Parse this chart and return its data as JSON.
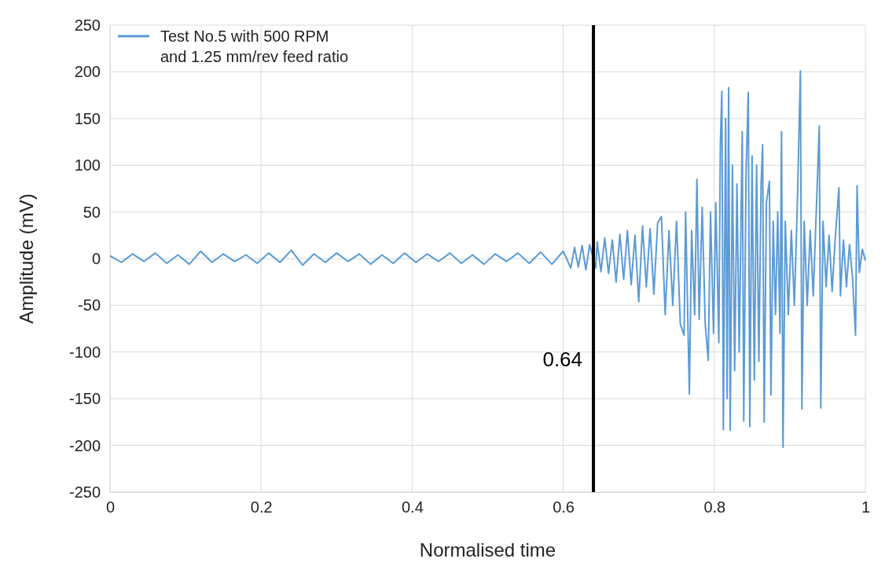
{
  "chart_data": {
    "type": "line",
    "xlabel": "Normalised time",
    "ylabel": "Amplitude (mV)",
    "xlim": [
      0,
      1
    ],
    "xticks": [
      0,
      0.2,
      0.4,
      0.6,
      0.8,
      1
    ],
    "ylim": [
      -250,
      250
    ],
    "yticks": [
      -250,
      -200,
      -150,
      -100,
      -50,
      0,
      50,
      100,
      150,
      200,
      250
    ],
    "grid": true,
    "legend": "top left",
    "line_style": "solid",
    "marker": "none",
    "ref_lines": [
      {
        "axis": "x",
        "value": 0.64,
        "label": "0.64",
        "color": "#000000"
      }
    ],
    "series": [
      {
        "name": "Test No.5 with 500 RPM and 1.25 mm/rev feed ratio",
        "color": "#5b9bd5",
        "x": [
          0,
          0.015,
          0.03,
          0.045,
          0.06,
          0.075,
          0.09,
          0.105,
          0.12,
          0.135,
          0.15,
          0.165,
          0.18,
          0.195,
          0.21,
          0.225,
          0.24,
          0.255,
          0.27,
          0.285,
          0.3,
          0.315,
          0.33,
          0.345,
          0.36,
          0.375,
          0.39,
          0.405,
          0.42,
          0.435,
          0.45,
          0.465,
          0.48,
          0.495,
          0.51,
          0.525,
          0.54,
          0.555,
          0.57,
          0.585,
          0.6,
          0.61,
          0.615,
          0.62,
          0.625,
          0.63,
          0.635,
          0.643,
          0.645,
          0.65,
          0.655,
          0.66,
          0.665,
          0.67,
          0.675,
          0.68,
          0.685,
          0.69,
          0.695,
          0.7,
          0.705,
          0.71,
          0.715,
          0.72,
          0.725,
          0.73,
          0.735,
          0.74,
          0.745,
          0.75,
          0.755,
          0.76,
          0.762,
          0.767,
          0.77,
          0.774,
          0.777,
          0.78,
          0.784,
          0.788,
          0.792,
          0.795,
          0.799,
          0.802,
          0.806,
          0.808,
          0.81,
          0.812,
          0.815,
          0.817,
          0.819,
          0.821,
          0.824,
          0.827,
          0.83,
          0.833,
          0.837,
          0.839,
          0.842,
          0.845,
          0.847,
          0.85,
          0.853,
          0.856,
          0.859,
          0.862,
          0.864,
          0.866,
          0.869,
          0.873,
          0.875,
          0.878,
          0.881,
          0.884,
          0.887,
          0.889,
          0.891,
          0.894,
          0.898,
          0.902,
          0.906,
          0.91,
          0.914,
          0.916,
          0.919,
          0.923,
          0.927,
          0.931,
          0.935,
          0.939,
          0.941,
          0.944,
          0.948,
          0.952,
          0.956,
          0.96,
          0.965,
          0.967,
          0.971,
          0.975,
          0.979,
          0.983,
          0.987,
          0.989,
          0.992,
          0.996,
          1
        ],
        "values": [
          3,
          -4,
          5,
          -3,
          6,
          -5,
          4,
          -6,
          8,
          -4,
          5,
          -3,
          4,
          -5,
          6,
          -4,
          9,
          -7,
          5,
          -4,
          6,
          -3,
          5,
          -6,
          4,
          -5,
          6,
          -4,
          5,
          -3,
          6,
          -5,
          4,
          -6,
          5,
          -3,
          6,
          -5,
          7,
          -6,
          8,
          -10,
          12,
          -9,
          14,
          -12,
          15,
          -10,
          18,
          -14,
          22,
          -16,
          20,
          -25,
          26,
          -22,
          30,
          -28,
          25,
          -46,
          35,
          -30,
          32,
          -38,
          38,
          45,
          -60,
          30,
          -50,
          40,
          -70,
          -82,
          50,
          -145,
          30,
          -60,
          85,
          -65,
          55,
          -70,
          -109,
          50,
          -80,
          60,
          -90,
          120,
          179,
          -183,
          150,
          -150,
          183,
          -184,
          100,
          -120,
          80,
          -100,
          136,
          -174,
          90,
          178,
          -180,
          110,
          -130,
          100,
          -110,
          80,
          122,
          -175,
          60,
          83,
          -146,
          40,
          -60,
          50,
          -80,
          136,
          -202,
          40,
          -60,
          30,
          -50,
          60,
          201,
          -161,
          40,
          -50,
          30,
          -40,
          50,
          142,
          -160,
          40,
          -30,
          25,
          -35,
          20,
          76,
          -40,
          20,
          -30,
          15,
          -20,
          -82,
          78,
          -15,
          10,
          -2
        ]
      }
    ]
  }
}
